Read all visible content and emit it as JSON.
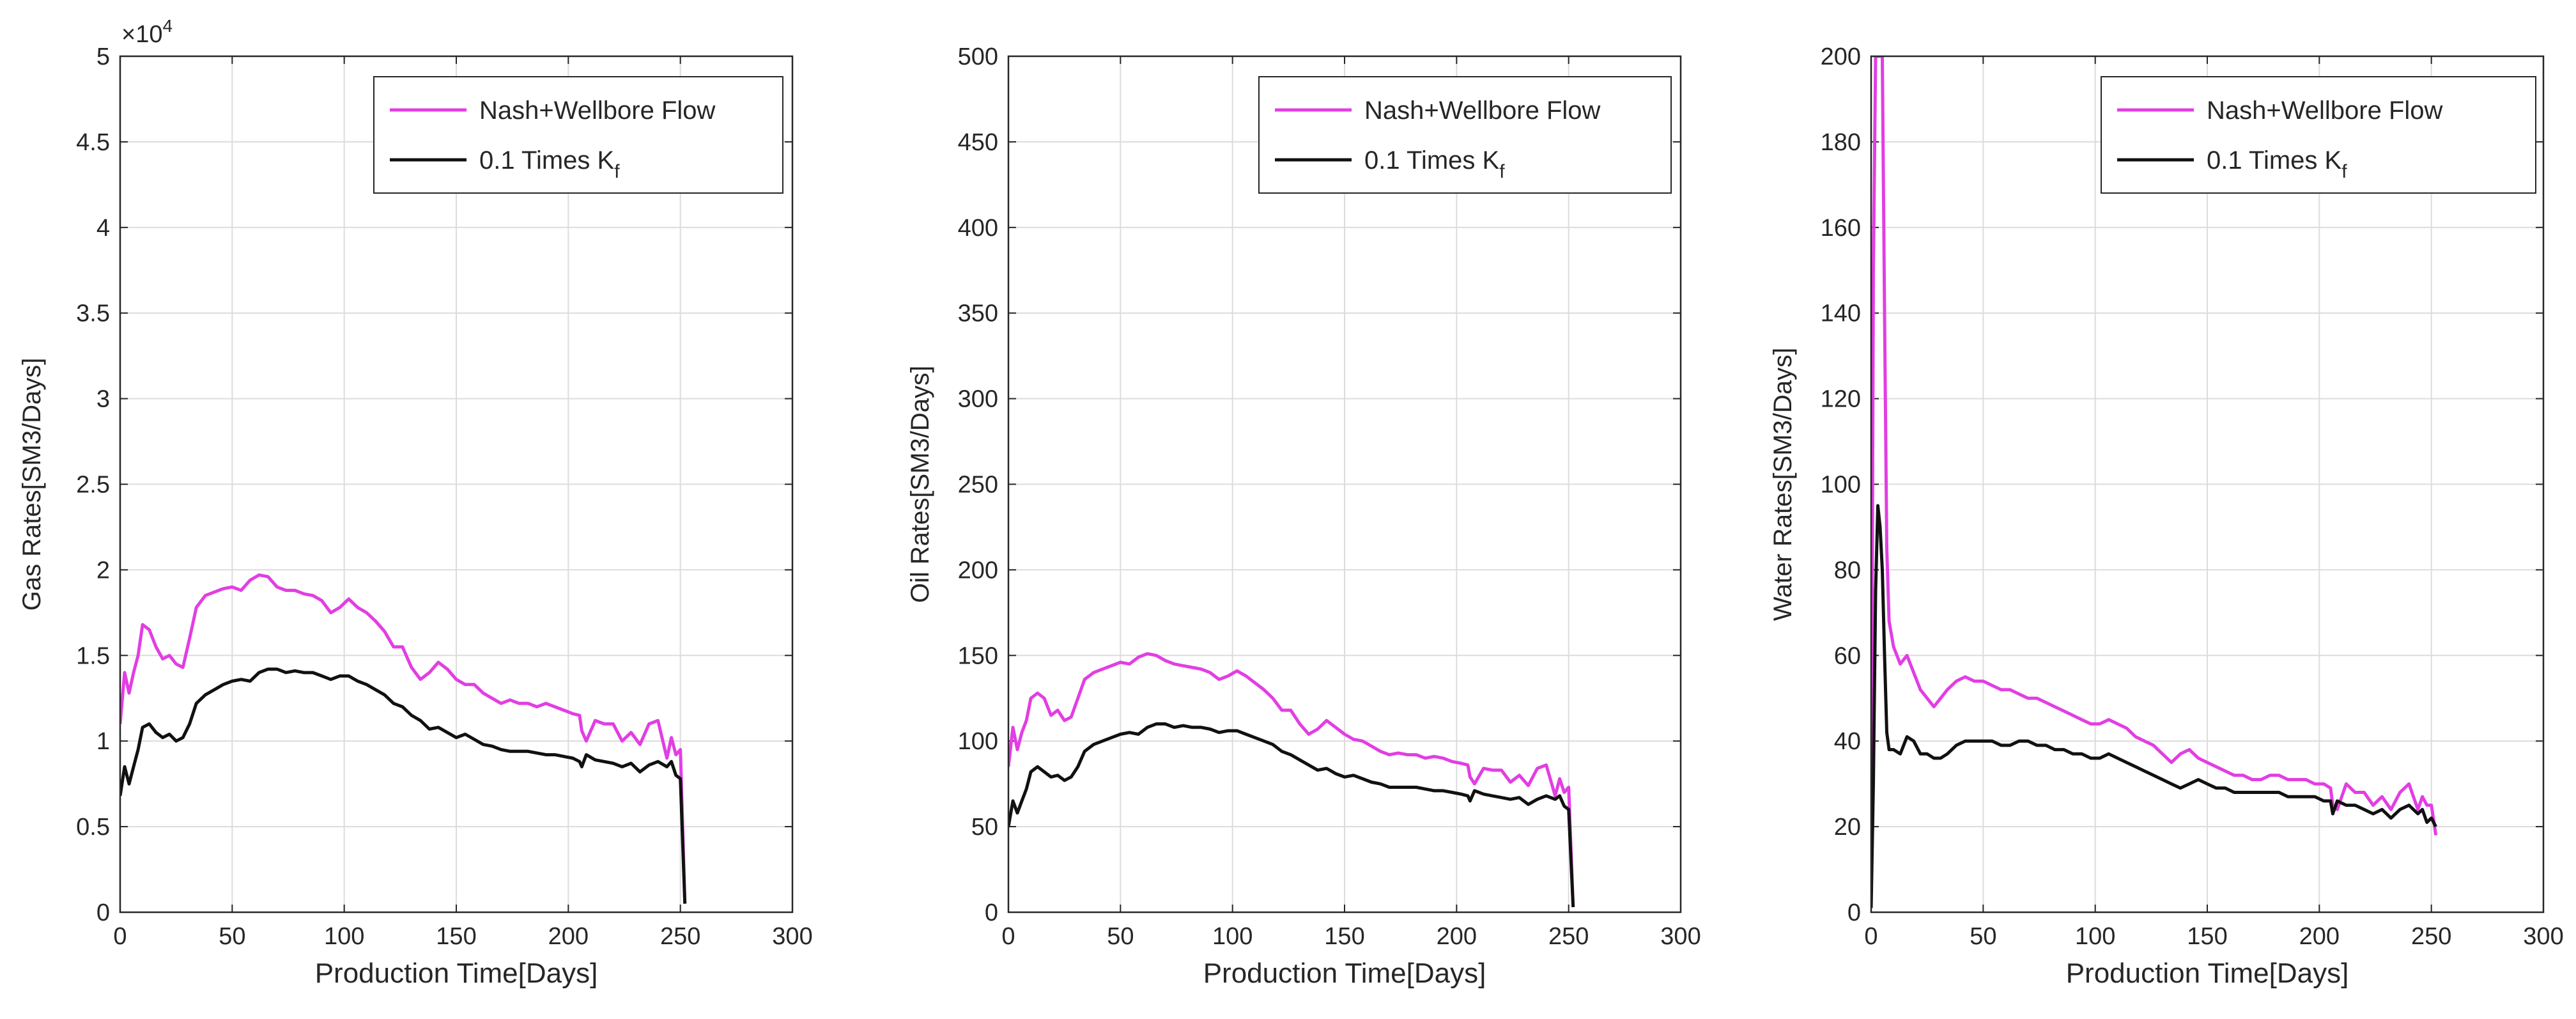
{
  "colors": {
    "series1": "#e23ee3",
    "series2": "#111111",
    "axis": "#262626",
    "grid": "#dcdcdc",
    "text": "#262626"
  },
  "legend": {
    "entries": [
      "Nash+Wellbore Flow",
      "0.1 Times K",
      "f"
    ]
  },
  "chart_data": [
    {
      "type": "line",
      "title": "",
      "xlabel": "Production Time[Days]",
      "ylabel": "Gas Rates[SM3/Days]",
      "xlim": [
        0,
        300
      ],
      "ylim": [
        0,
        5
      ],
      "y_exponent_label": "×10",
      "y_exponent": "4",
      "xticks": [
        "0",
        "50",
        "100",
        "150",
        "200",
        "250",
        "300"
      ],
      "yticks": [
        "0",
        "0.5",
        "1",
        "1.5",
        "2",
        "2.5",
        "3",
        "3.5",
        "4",
        "4.5",
        "5"
      ],
      "grid": true,
      "legend_position": "top-right",
      "series": [
        {
          "name": "Nash+Wellbore Flow",
          "x": [
            0,
            2,
            4,
            6,
            8,
            10,
            13,
            16,
            19,
            22,
            25,
            28,
            31,
            34,
            38,
            42,
            46,
            50,
            54,
            58,
            62,
            66,
            70,
            74,
            78,
            82,
            86,
            90,
            94,
            98,
            102,
            106,
            110,
            114,
            118,
            122,
            126,
            130,
            134,
            138,
            142,
            146,
            150,
            154,
            158,
            162,
            166,
            170,
            174,
            178,
            182,
            186,
            190,
            194,
            198,
            202,
            205,
            206,
            208,
            212,
            216,
            220,
            224,
            228,
            232,
            236,
            240,
            244,
            246,
            248,
            250,
            252
          ],
          "y": [
            1.1,
            1.4,
            1.28,
            1.4,
            1.5,
            1.68,
            1.65,
            1.55,
            1.48,
            1.5,
            1.45,
            1.43,
            1.6,
            1.78,
            1.85,
            1.87,
            1.89,
            1.9,
            1.88,
            1.94,
            1.97,
            1.96,
            1.9,
            1.88,
            1.88,
            1.86,
            1.85,
            1.82,
            1.75,
            1.78,
            1.83,
            1.78,
            1.75,
            1.7,
            1.64,
            1.55,
            1.55,
            1.43,
            1.36,
            1.4,
            1.46,
            1.42,
            1.36,
            1.33,
            1.33,
            1.28,
            1.25,
            1.22,
            1.24,
            1.22,
            1.22,
            1.2,
            1.22,
            1.2,
            1.18,
            1.16,
            1.15,
            1.06,
            1.0,
            1.12,
            1.1,
            1.1,
            1.0,
            1.05,
            0.98,
            1.1,
            1.12,
            0.9,
            1.02,
            0.92,
            0.95,
            0.05
          ]
        },
        {
          "name": "0.1 Times Kf",
          "x": [
            0,
            2,
            4,
            6,
            8,
            10,
            13,
            16,
            19,
            22,
            25,
            28,
            31,
            34,
            38,
            42,
            46,
            50,
            54,
            58,
            62,
            66,
            70,
            74,
            78,
            82,
            86,
            90,
            94,
            98,
            102,
            106,
            110,
            114,
            118,
            122,
            126,
            130,
            134,
            138,
            142,
            146,
            150,
            154,
            158,
            162,
            166,
            170,
            174,
            178,
            182,
            186,
            190,
            194,
            198,
            202,
            205,
            206,
            208,
            212,
            216,
            220,
            224,
            228,
            232,
            236,
            240,
            244,
            246,
            248,
            250,
            252
          ],
          "y": [
            0.68,
            0.85,
            0.75,
            0.85,
            0.95,
            1.08,
            1.1,
            1.05,
            1.02,
            1.04,
            1.0,
            1.02,
            1.1,
            1.22,
            1.27,
            1.3,
            1.33,
            1.35,
            1.36,
            1.35,
            1.4,
            1.42,
            1.42,
            1.4,
            1.41,
            1.4,
            1.4,
            1.38,
            1.36,
            1.38,
            1.38,
            1.35,
            1.33,
            1.3,
            1.27,
            1.22,
            1.2,
            1.15,
            1.12,
            1.07,
            1.08,
            1.05,
            1.02,
            1.04,
            1.01,
            0.98,
            0.97,
            0.95,
            0.94,
            0.94,
            0.94,
            0.93,
            0.92,
            0.92,
            0.91,
            0.9,
            0.88,
            0.85,
            0.92,
            0.89,
            0.88,
            0.87,
            0.85,
            0.87,
            0.82,
            0.86,
            0.88,
            0.85,
            0.88,
            0.8,
            0.78,
            0.05
          ]
        }
      ]
    },
    {
      "type": "line",
      "title": "",
      "xlabel": "Production Time[Days]",
      "ylabel": "Oil Rates[SM3/Days]",
      "xlim": [
        0,
        300
      ],
      "ylim": [
        0,
        500
      ],
      "xticks": [
        "0",
        "50",
        "100",
        "150",
        "200",
        "250",
        "300"
      ],
      "yticks": [
        "0",
        "50",
        "100",
        "150",
        "200",
        "250",
        "300",
        "350",
        "400",
        "450",
        "500"
      ],
      "grid": true,
      "legend_position": "top-right",
      "series": [
        {
          "name": "Nash+Wellbore Flow",
          "x": [
            0,
            2,
            4,
            6,
            8,
            10,
            13,
            16,
            19,
            22,
            25,
            28,
            31,
            34,
            38,
            42,
            46,
            50,
            54,
            58,
            62,
            66,
            70,
            74,
            78,
            82,
            86,
            90,
            94,
            98,
            102,
            106,
            110,
            114,
            118,
            122,
            126,
            130,
            134,
            138,
            142,
            146,
            150,
            154,
            158,
            162,
            166,
            170,
            174,
            178,
            182,
            186,
            190,
            194,
            198,
            202,
            205,
            206,
            208,
            212,
            216,
            220,
            224,
            228,
            232,
            236,
            240,
            244,
            246,
            248,
            250,
            252
          ],
          "y": [
            85,
            108,
            95,
            105,
            112,
            125,
            128,
            125,
            115,
            118,
            112,
            114,
            125,
            136,
            140,
            142,
            144,
            146,
            145,
            149,
            151,
            150,
            147,
            145,
            144,
            143,
            142,
            140,
            136,
            138,
            141,
            138,
            134,
            130,
            125,
            118,
            118,
            110,
            104,
            107,
            112,
            108,
            104,
            101,
            100,
            97,
            94,
            92,
            93,
            92,
            92,
            90,
            91,
            90,
            88,
            87,
            86,
            79,
            75,
            84,
            83,
            83,
            76,
            80,
            74,
            84,
            86,
            68,
            78,
            70,
            73,
            3
          ]
        },
        {
          "name": "0.1 Times Kf",
          "x": [
            0,
            2,
            4,
            6,
            8,
            10,
            13,
            16,
            19,
            22,
            25,
            28,
            31,
            34,
            38,
            42,
            46,
            50,
            54,
            58,
            62,
            66,
            70,
            74,
            78,
            82,
            86,
            90,
            94,
            98,
            102,
            106,
            110,
            114,
            118,
            122,
            126,
            130,
            134,
            138,
            142,
            146,
            150,
            154,
            158,
            162,
            166,
            170,
            174,
            178,
            182,
            186,
            190,
            194,
            198,
            202,
            205,
            206,
            208,
            212,
            216,
            220,
            224,
            228,
            232,
            236,
            240,
            244,
            246,
            248,
            250,
            252
          ],
          "y": [
            50,
            65,
            58,
            65,
            72,
            82,
            85,
            82,
            79,
            80,
            77,
            79,
            85,
            94,
            98,
            100,
            102,
            104,
            105,
            104,
            108,
            110,
            110,
            108,
            109,
            108,
            108,
            107,
            105,
            106,
            106,
            104,
            102,
            100,
            98,
            94,
            92,
            89,
            86,
            83,
            84,
            81,
            79,
            80,
            78,
            76,
            75,
            73,
            73,
            73,
            73,
            72,
            71,
            71,
            70,
            69,
            68,
            65,
            71,
            69,
            68,
            67,
            66,
            67,
            63,
            66,
            68,
            66,
            68,
            62,
            60,
            3
          ]
        }
      ]
    },
    {
      "type": "line",
      "title": "",
      "xlabel": "Production Time[Days]",
      "ylabel": "Water Rates[SM3/Days]",
      "xlim": [
        0,
        300
      ],
      "ylim": [
        0,
        200
      ],
      "xticks": [
        "0",
        "50",
        "100",
        "150",
        "200",
        "250",
        "300"
      ],
      "yticks": [
        "0",
        "20",
        "40",
        "60",
        "80",
        "100",
        "120",
        "140",
        "160",
        "180",
        "200"
      ],
      "grid": true,
      "legend_position": "top-right",
      "series": [
        {
          "name": "Nash+Wellbore Flow",
          "x": [
            0,
            1,
            2,
            3,
            4,
            5,
            6,
            7,
            8,
            10,
            13,
            16,
            19,
            22,
            25,
            28,
            31,
            34,
            38,
            42,
            46,
            50,
            54,
            58,
            62,
            66,
            70,
            74,
            78,
            82,
            86,
            90,
            94,
            98,
            102,
            106,
            110,
            114,
            118,
            122,
            126,
            130,
            134,
            138,
            142,
            146,
            150,
            154,
            158,
            162,
            166,
            170,
            174,
            178,
            182,
            186,
            190,
            194,
            198,
            202,
            205,
            206,
            208,
            212,
            216,
            220,
            224,
            228,
            232,
            236,
            240,
            244,
            246,
            248,
            250,
            252
          ],
          "y": [
            2,
            150,
            200,
            200,
            200,
            200,
            140,
            85,
            68,
            62,
            58,
            60,
            56,
            52,
            50,
            48,
            50,
            52,
            54,
            55,
            54,
            54,
            53,
            52,
            52,
            51,
            50,
            50,
            49,
            48,
            47,
            46,
            45,
            44,
            44,
            45,
            44,
            43,
            41,
            40,
            39,
            37,
            35,
            37,
            38,
            36,
            35,
            34,
            33,
            32,
            32,
            31,
            31,
            32,
            32,
            31,
            31,
            31,
            30,
            30,
            29,
            25,
            24,
            30,
            28,
            28,
            25,
            27,
            24,
            28,
            30,
            24,
            27,
            25,
            25,
            18
          ]
        },
        {
          "name": "0.1 Times Kf",
          "x": [
            0,
            1,
            2,
            3,
            4,
            5,
            6,
            7,
            8,
            10,
            13,
            16,
            19,
            22,
            25,
            28,
            31,
            34,
            38,
            42,
            46,
            50,
            54,
            58,
            62,
            66,
            70,
            74,
            78,
            82,
            86,
            90,
            94,
            98,
            102,
            106,
            110,
            114,
            118,
            122,
            126,
            130,
            134,
            138,
            142,
            146,
            150,
            154,
            158,
            162,
            166,
            170,
            174,
            178,
            182,
            186,
            190,
            194,
            198,
            202,
            205,
            206,
            208,
            212,
            216,
            220,
            224,
            228,
            232,
            236,
            240,
            244,
            246,
            248,
            250,
            252
          ],
          "y": [
            1,
            30,
            75,
            95,
            90,
            80,
            60,
            42,
            38,
            38,
            37,
            41,
            40,
            37,
            37,
            36,
            36,
            37,
            39,
            40,
            40,
            40,
            40,
            39,
            39,
            40,
            40,
            39,
            39,
            38,
            38,
            37,
            37,
            36,
            36,
            37,
            36,
            35,
            34,
            33,
            32,
            31,
            30,
            29,
            30,
            31,
            30,
            29,
            29,
            28,
            28,
            28,
            28,
            28,
            28,
            27,
            27,
            27,
            27,
            26,
            26,
            23,
            26,
            25,
            25,
            24,
            23,
            24,
            22,
            24,
            25,
            23,
            24,
            21,
            22,
            20
          ]
        }
      ]
    }
  ]
}
